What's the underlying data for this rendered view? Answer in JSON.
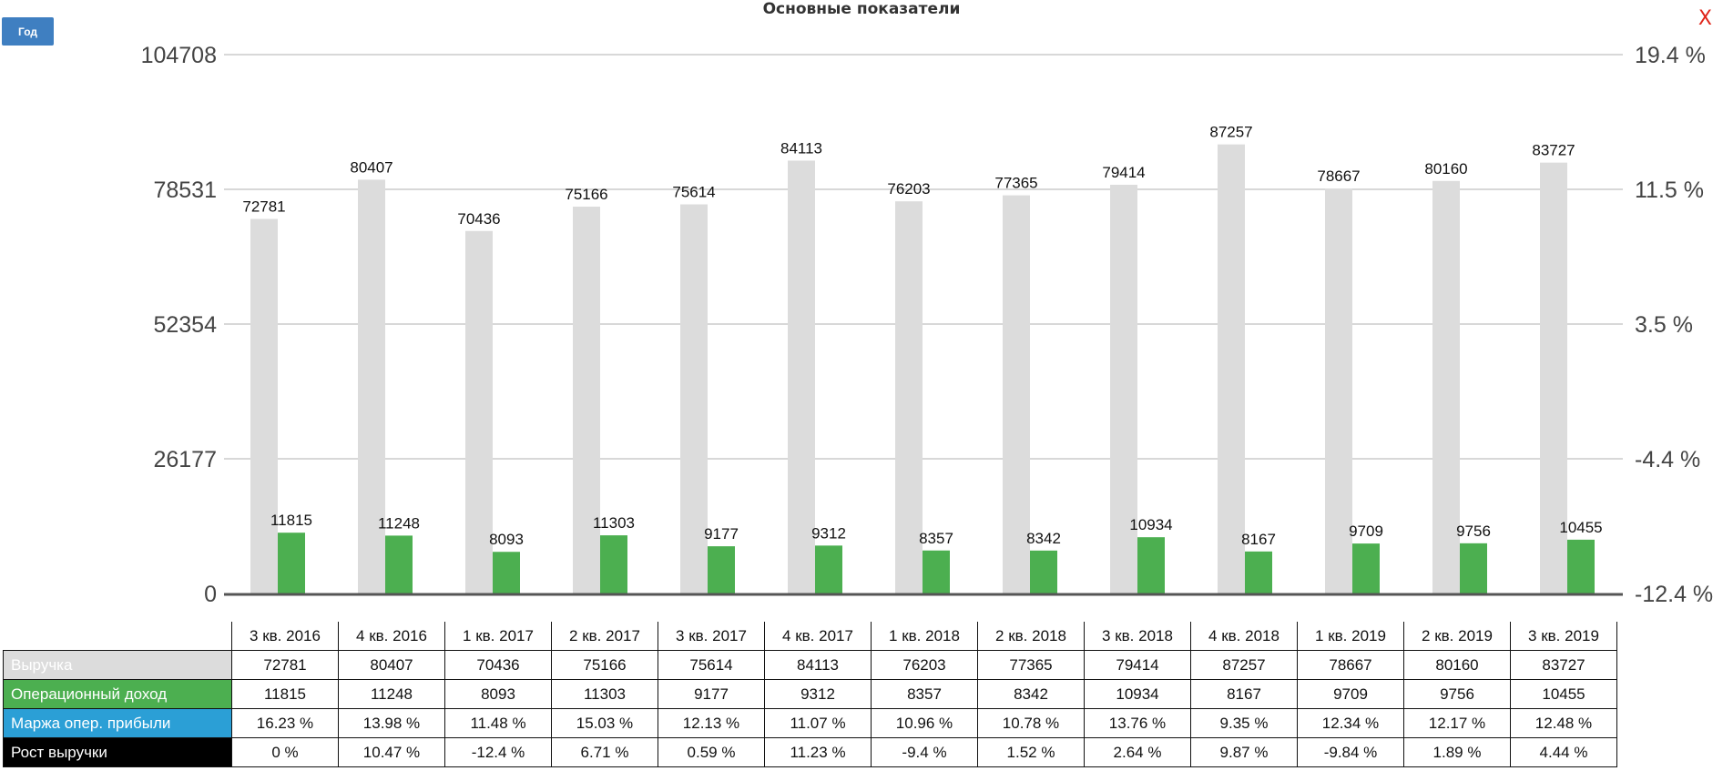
{
  "controls": {
    "year_button": "Год",
    "close_button": "X"
  },
  "colors": {
    "revenue": "#dcdcdc",
    "operating_income": "#4caf50",
    "margin": "#2b9fd6",
    "growth": "#000000",
    "grid": "#cccccc",
    "close": "#e0261b",
    "button": "#3f7fc1"
  },
  "chart_data": {
    "type": "bar",
    "title": "Основные показатели",
    "categories": [
      "3 кв. 2016",
      "4 кв. 2016",
      "1 кв. 2017",
      "2 кв. 2017",
      "3 кв. 2017",
      "4 кв. 2017",
      "1 кв. 2018",
      "2 кв. 2018",
      "3 кв. 2018",
      "4 кв. 2018",
      "1 кв. 2019",
      "2 кв. 2019",
      "3 кв. 2019"
    ],
    "series": [
      {
        "name": "Выручка",
        "values": [
          72781,
          80407,
          70436,
          75166,
          75614,
          84113,
          76203,
          77365,
          79414,
          87257,
          78667,
          80160,
          83727
        ]
      },
      {
        "name": "Операционный доход",
        "values": [
          11815,
          11248,
          8093,
          11303,
          9177,
          9312,
          8357,
          8342,
          10934,
          8167,
          9709,
          9756,
          10455
        ]
      }
    ],
    "ylim": [
      0,
      104708
    ],
    "y_ticks": [
      "0",
      "26177",
      "52354",
      "78531",
      "104708"
    ],
    "y2_ticks": [
      "-12.4 %",
      "-4.4 %",
      "3.5 %",
      "11.5 %",
      "19.4 %"
    ],
    "grid": true
  },
  "table": {
    "rows": [
      {
        "label": "Выручка",
        "color_key": "revenue",
        "values": [
          "72781",
          "80407",
          "70436",
          "75166",
          "75614",
          "84113",
          "76203",
          "77365",
          "79414",
          "87257",
          "78667",
          "80160",
          "83727"
        ]
      },
      {
        "label": "Операционный доход",
        "color_key": "operating_income",
        "values": [
          "11815",
          "11248",
          "8093",
          "11303",
          "9177",
          "9312",
          "8357",
          "8342",
          "10934",
          "8167",
          "9709",
          "9756",
          "10455"
        ]
      },
      {
        "label": "Маржа опер. прибыли",
        "color_key": "margin",
        "values": [
          "16.23 %",
          "13.98 %",
          "11.48 %",
          "15.03 %",
          "12.13 %",
          "11.07 %",
          "10.96 %",
          "10.78 %",
          "13.76 %",
          "9.35 %",
          "12.34 %",
          "12.17 %",
          "12.48 %"
        ]
      },
      {
        "label": "Рост выручки",
        "color_key": "growth",
        "values": [
          "0 %",
          "10.47 %",
          "-12.4 %",
          "6.71 %",
          "0.59 %",
          "11.23 %",
          "-9.4 %",
          "1.52 %",
          "2.64 %",
          "9.87 %",
          "-9.84 %",
          "1.89 %",
          "4.44 %"
        ]
      }
    ]
  }
}
